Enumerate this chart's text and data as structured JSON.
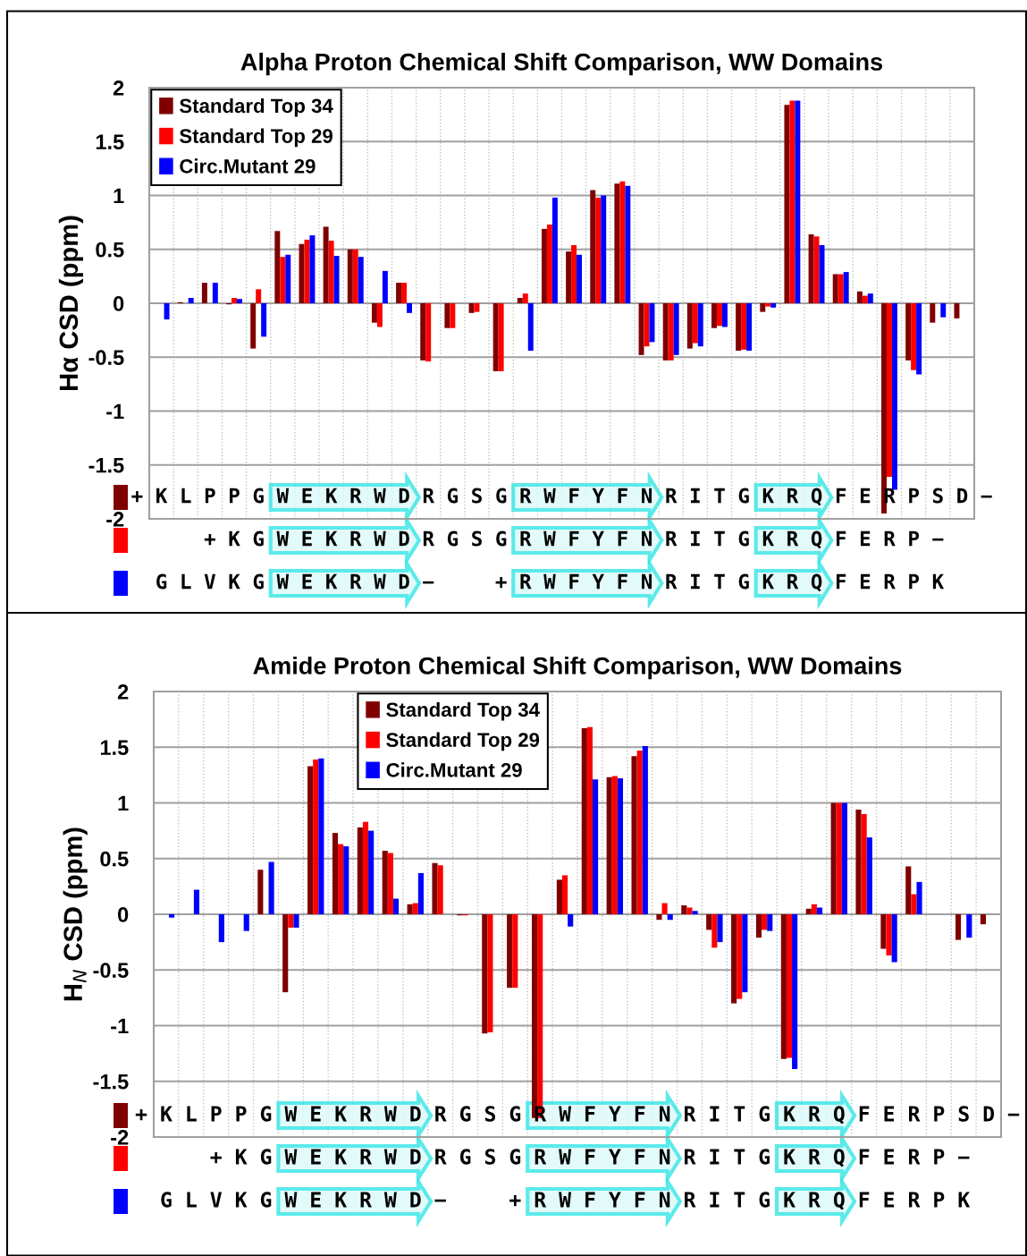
{
  "chart_data": [
    {
      "type": "bar",
      "title": "Alpha Proton Chemical Shift Comparison, WW Domains",
      "ylabel": "Hα CSD (ppm)",
      "categories": [
        null,
        null,
        null,
        null,
        null,
        null,
        null,
        null,
        null,
        null,
        null,
        null,
        null,
        null,
        null,
        null,
        null,
        null,
        null,
        null,
        null,
        null,
        null,
        null,
        null,
        null,
        null,
        null,
        null,
        null,
        null,
        null,
        null,
        null
      ],
      "series": [
        {
          "name": "Standard Top 34",
          "color": "#800000",
          "values": [
            null,
            0.01,
            0.19,
            -0.01,
            -0.42,
            0.67,
            0.55,
            0.71,
            0.5,
            -0.18,
            0.19,
            -0.53,
            -0.23,
            -0.09,
            -0.63,
            0.05,
            0.69,
            0.48,
            1.05,
            1.11,
            -0.48,
            -0.53,
            -0.42,
            -0.23,
            -0.44,
            -0.08,
            1.84,
            0.64,
            0.27,
            0.11,
            -1.95,
            -0.53,
            -0.18,
            -0.14
          ]
        },
        {
          "name": "Standard Top 29",
          "color": "#ff0000",
          "values": [
            null,
            null,
            null,
            0.05,
            0.13,
            0.43,
            0.59,
            0.58,
            0.5,
            -0.22,
            0.19,
            -0.54,
            -0.23,
            -0.08,
            -0.63,
            0.09,
            0.73,
            0.54,
            0.98,
            1.13,
            -0.4,
            -0.53,
            -0.37,
            -0.21,
            -0.43,
            -0.03,
            1.88,
            0.62,
            0.27,
            0.07,
            -1.61,
            -0.62,
            null,
            null
          ]
        },
        {
          "name": "Circ.Mutant 29",
          "color": "#0000ff",
          "values": [
            -0.15,
            0.05,
            0.19,
            0.04,
            -0.31,
            0.45,
            0.63,
            0.44,
            0.43,
            0.3,
            -0.09,
            null,
            null,
            null,
            null,
            -0.44,
            0.98,
            0.45,
            1.0,
            1.09,
            -0.36,
            -0.48,
            -0.4,
            -0.22,
            -0.44,
            -0.04,
            1.88,
            0.54,
            0.29,
            0.09,
            -1.73,
            -0.66,
            -0.13,
            null
          ]
        }
      ],
      "ylim": [
        -2,
        2
      ],
      "yticks": [
        -2,
        -1.5,
        -1,
        -0.5,
        0,
        0.5,
        1,
        1.5,
        2
      ],
      "grid": true,
      "legend": "top left",
      "tick_labels": "y",
      "annotations": [
        "+ K L P P G W E K R W D R G S G R W F Y F N R I T G K R Q F E R P S D −",
        "      + K G W E K R W D R G S G R W F Y F N R I T G K R Q F E R P −",
        "  G L V K G W E K R W D −     + R W F Y F N R I T G K R Q F E R P K"
      ]
    },
    {
      "type": "bar",
      "title": "Amide Proton Chemical Shift Comparison, WW Domains",
      "ylabel": "H$_{N}$ CSD (ppm)",
      "categories": [
        null,
        null,
        null,
        null,
        null,
        null,
        null,
        null,
        null,
        null,
        null,
        null,
        null,
        null,
        null,
        null,
        null,
        null,
        null,
        null,
        null,
        null,
        null,
        null,
        null,
        null,
        null,
        null,
        null,
        null,
        null,
        null,
        null,
        null
      ],
      "series": [
        {
          "name": "Standard Top 34",
          "color": "#800000",
          "values": [
            null,
            null,
            null,
            null,
            0.4,
            -0.7,
            1.33,
            0.73,
            0.78,
            0.57,
            0.09,
            0.46,
            -0.01,
            -1.07,
            -0.66,
            -1.83,
            0.31,
            1.67,
            1.23,
            1.42,
            -0.05,
            0.08,
            -0.14,
            -0.8,
            -0.21,
            -1.3,
            0.05,
            1.0,
            0.94,
            -0.31,
            0.43,
            null,
            -0.23,
            -0.09
          ]
        },
        {
          "name": "Standard Top 29",
          "color": "#ff0000",
          "values": [
            null,
            null,
            null,
            null,
            null,
            -0.12,
            1.39,
            0.63,
            0.83,
            0.55,
            0.1,
            0.44,
            -0.01,
            -1.06,
            -0.66,
            -1.83,
            0.35,
            1.68,
            1.24,
            1.47,
            0.1,
            0.06,
            -0.3,
            -0.76,
            -0.14,
            -1.29,
            0.09,
            1.0,
            0.9,
            -0.37,
            0.18,
            null,
            null,
            null
          ]
        },
        {
          "name": "Circ.Mutant 29",
          "color": "#0000ff",
          "values": [
            -0.03,
            0.22,
            -0.25,
            -0.15,
            0.47,
            -0.12,
            1.4,
            0.61,
            0.75,
            0.14,
            0.37,
            null,
            null,
            null,
            null,
            null,
            -0.11,
            1.21,
            1.22,
            1.51,
            -0.05,
            0.03,
            -0.25,
            -0.7,
            -0.15,
            -1.39,
            0.06,
            1.0,
            0.69,
            -0.43,
            0.29,
            null,
            -0.21,
            null
          ]
        }
      ],
      "ylim": [
        -2,
        2
      ],
      "yticks": [
        -2,
        -1.5,
        -1,
        -0.5,
        0,
        0.5,
        1,
        1.5,
        2
      ],
      "grid": true,
      "legend": "top",
      "tick_labels": "y",
      "annotations": [
        "+ K L P P G W E K R W D R G S G R W F Y F N R I T G K R Q F E R P S D −",
        "      + K G W E K R W D R G S G R W F Y F N R I T G K R Q F E R P −",
        "  G L V K G W E K R W D −     + R W F Y F N R I T G K R Q F E R P K"
      ]
    }
  ]
}
